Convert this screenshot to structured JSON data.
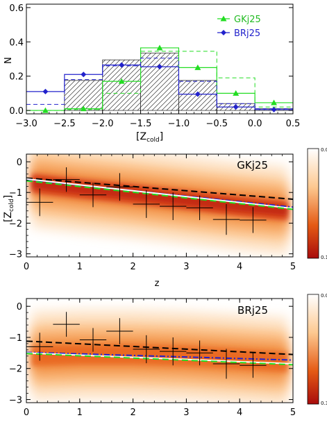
{
  "chart_data": [
    {
      "type": "histogram",
      "xlabel_main": "[Z",
      "xlabel_sub": "cold",
      "xlabel_close": "]",
      "ylabel": "N",
      "xlim": [
        -3.0,
        0.5
      ],
      "ylim": [
        -0.02,
        0.62
      ],
      "xticks": [
        "-3.0",
        "-2.5",
        "-2.0",
        "-1.5",
        "-1.0",
        "-0.5",
        "0.0",
        "0.5"
      ],
      "yticks": [
        "0.0",
        "0.2",
        "0.4",
        "0.6"
      ],
      "bin_edges": [
        -3.0,
        -2.5,
        -2.0,
        -1.5,
        -1.0,
        -0.5,
        0.0,
        0.5
      ],
      "series": [
        {
          "name": "GKj25",
          "color": "#22dd22",
          "marker": "triangle",
          "steps": [
            0.0,
            0.01,
            0.17,
            0.365,
            0.25,
            0.1,
            0.045
          ],
          "points": [
            0.0,
            0.01,
            0.17,
            0.365,
            0.25,
            0.1,
            0.045
          ],
          "dashed": [
            0.0,
            0.005,
            0.1,
            0.345,
            0.345,
            0.19,
            0.02
          ]
        },
        {
          "name": "BRj25",
          "color": "#2222cc",
          "marker": "diamond",
          "steps": [
            0.11,
            0.21,
            0.265,
            0.255,
            0.095,
            0.02,
            0.005
          ],
          "points": [
            0.11,
            0.21,
            0.265,
            0.255,
            0.095,
            0.02,
            0.005
          ],
          "dashed": [
            0.035,
            0.18,
            0.26,
            0.305,
            0.17,
            0.04,
            0.01
          ]
        }
      ],
      "hatched": [
        0.0,
        0.175,
        0.295,
        0.335,
        0.175,
        0.04,
        0.01
      ],
      "legend": [
        "GKj25",
        "BRj25"
      ]
    },
    {
      "type": "density_with_errorbars",
      "panel_label": "GKj25",
      "xlabel": "z",
      "ylabel_main": "[Z",
      "ylabel_sub": "cold",
      "ylabel_close": "]",
      "xlim": [
        0,
        5
      ],
      "ylim": [
        -3.1,
        0.25
      ],
      "xticks": [
        "0",
        "1",
        "2",
        "3",
        "4",
        "5"
      ],
      "yticks": [
        "-3",
        "-2",
        "-1",
        "0"
      ],
      "colorbar_range": [
        "0.00",
        "0.15"
      ],
      "band_centre": [
        [
          0.1,
          -0.7
        ],
        [
          1.0,
          -0.88
        ],
        [
          2.0,
          -1.05
        ],
        [
          3.0,
          -1.25
        ],
        [
          4.0,
          -1.45
        ],
        [
          4.9,
          -1.6
        ]
      ],
      "errorbars": [
        {
          "x": 0.25,
          "y": -1.32,
          "xerr": 0.25,
          "yerr": 0.45
        },
        {
          "x": 0.75,
          "y": -0.58,
          "xerr": 0.25,
          "yerr": 0.4
        },
        {
          "x": 1.25,
          "y": -1.08,
          "xerr": 0.25,
          "yerr": 0.4
        },
        {
          "x": 1.75,
          "y": -0.82,
          "xerr": 0.25,
          "yerr": 0.45
        },
        {
          "x": 2.25,
          "y": -1.38,
          "xerr": 0.25,
          "yerr": 0.45
        },
        {
          "x": 2.75,
          "y": -1.45,
          "xerr": 0.25,
          "yerr": 0.45
        },
        {
          "x": 3.25,
          "y": -1.5,
          "xerr": 0.25,
          "yerr": 0.4
        },
        {
          "x": 3.75,
          "y": -1.88,
          "xerr": 0.25,
          "yerr": 0.5
        },
        {
          "x": 4.25,
          "y": -1.9,
          "xerr": 0.25,
          "yerr": 0.42
        }
      ],
      "fit_lines": [
        {
          "color": "#000000",
          "dash": "long",
          "points": [
            [
              0,
              -0.53
            ],
            [
              5,
              -1.22
            ]
          ]
        },
        {
          "color": "#2222cc",
          "dash": "dashdot",
          "points": [
            [
              0,
              -0.58
            ],
            [
              5,
              -1.48
            ]
          ]
        },
        {
          "color": "#ffffff",
          "dash": "solid",
          "points": [
            [
              0,
              -0.56
            ],
            [
              5,
              -1.52
            ]
          ]
        },
        {
          "color": "#22dd22",
          "dash": "long",
          "points": [
            [
              0,
              -0.62
            ],
            [
              5,
              -1.55
            ]
          ]
        }
      ]
    },
    {
      "type": "density_with_errorbars",
      "panel_label": "BRj25",
      "xlabel": "",
      "xlim": [
        0,
        5
      ],
      "ylim": [
        -3.1,
        0.25
      ],
      "xticks": [
        "0",
        "1",
        "2",
        "3",
        "4",
        "5"
      ],
      "yticks": [
        "-3",
        "-2",
        "-1",
        "0"
      ],
      "colorbar_range": [
        "0.00",
        "0.30"
      ],
      "band_centre": [
        [
          0.1,
          -1.6
        ],
        [
          1.0,
          -1.55
        ],
        [
          2.0,
          -1.55
        ],
        [
          3.0,
          -1.6
        ],
        [
          4.0,
          -1.7
        ],
        [
          4.9,
          -1.8
        ]
      ],
      "errorbars": [
        {
          "x": 0.25,
          "y": -1.3,
          "xerr": 0.25,
          "yerr": 0.45
        },
        {
          "x": 0.75,
          "y": -0.58,
          "xerr": 0.25,
          "yerr": 0.4
        },
        {
          "x": 1.25,
          "y": -1.08,
          "xerr": 0.25,
          "yerr": 0.38
        },
        {
          "x": 1.75,
          "y": -0.8,
          "xerr": 0.25,
          "yerr": 0.42
        },
        {
          "x": 2.25,
          "y": -1.38,
          "xerr": 0.25,
          "yerr": 0.45
        },
        {
          "x": 2.75,
          "y": -1.45,
          "xerr": 0.25,
          "yerr": 0.45
        },
        {
          "x": 3.25,
          "y": -1.5,
          "xerr": 0.25,
          "yerr": 0.4
        },
        {
          "x": 3.75,
          "y": -1.85,
          "xerr": 0.25,
          "yerr": 0.48
        },
        {
          "x": 4.25,
          "y": -1.9,
          "xerr": 0.25,
          "yerr": 0.4
        }
      ],
      "fit_lines": [
        {
          "color": "#000000",
          "dash": "long",
          "points": [
            [
              0,
              -1.12
            ],
            [
              5,
              -1.55
            ]
          ]
        },
        {
          "color": "#2222cc",
          "dash": "dashdot",
          "points": [
            [
              0,
              -1.48
            ],
            [
              5,
              -1.73
            ]
          ]
        },
        {
          "color": "#ffffff",
          "dash": "solid",
          "points": [
            [
              0,
              -1.5
            ],
            [
              5,
              -1.85
            ]
          ]
        },
        {
          "color": "#22dd22",
          "dash": "long",
          "points": [
            [
              0,
              -1.52
            ],
            [
              5,
              -1.88
            ]
          ]
        }
      ]
    }
  ]
}
